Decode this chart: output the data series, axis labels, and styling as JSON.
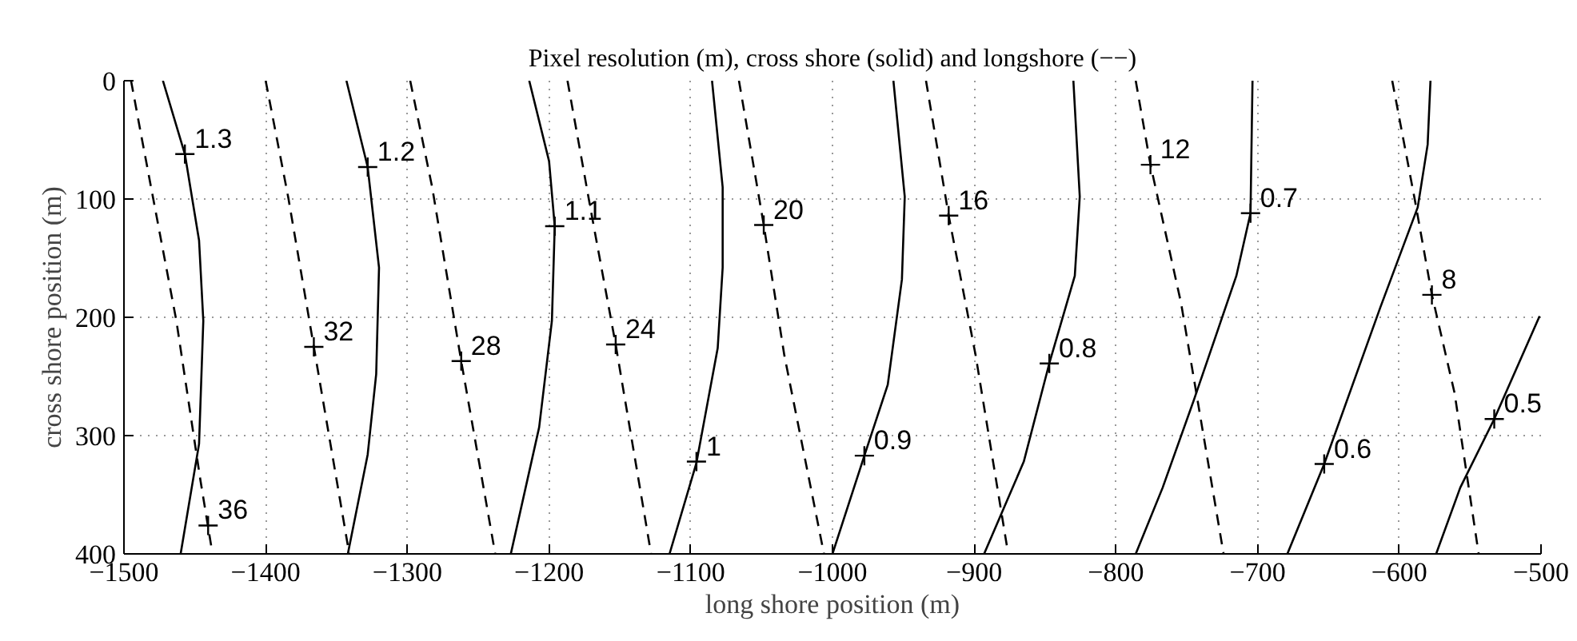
{
  "chart_data": {
    "type": "line",
    "title": "Pixel resolution (m), cross shore (solid) and longshore (−−)",
    "xlabel": "long shore position (m)",
    "ylabel": "cross shore position (m)",
    "xlim": [
      -1500,
      -500
    ],
    "ylim": [
      400,
      0
    ],
    "xticks": [
      -1500,
      -1400,
      -1300,
      -1200,
      -1100,
      -1000,
      -900,
      -800,
      -700,
      -600,
      -500
    ],
    "yticks": [
      0,
      100,
      200,
      300,
      400
    ],
    "grid": true,
    "marker": "none",
    "series": [
      {
        "color": "#000000",
        "line_style": "solid",
        "x": [
          -1472.5,
          -1457,
          -1447,
          -1444,
          -1447,
          -1460
        ],
        "values": [
          0,
          62,
          135,
          203,
          307,
          400
        ]
      },
      {
        "color": "#000000",
        "line_style": "solid",
        "x": [
          -1343,
          -1328,
          -1320,
          -1322,
          -1328,
          -1342
        ],
        "values": [
          0,
          73,
          158,
          248,
          316,
          400
        ]
      },
      {
        "color": "#000000",
        "line_style": "solid",
        "x": [
          -1214,
          -1200,
          -1196,
          -1198,
          -1207,
          -1227
        ],
        "values": [
          0,
          68,
          123,
          203,
          293,
          400
        ]
      },
      {
        "color": "#000000",
        "line_style": "solid",
        "x": [
          -1085,
          -1077.5,
          -1077.5,
          -1081,
          -1096,
          -1115
        ],
        "values": [
          0,
          90,
          158,
          226,
          323,
          400
        ]
      },
      {
        "color": "#000000",
        "line_style": "solid",
        "x": [
          -957,
          -949,
          -951,
          -961,
          -977.5,
          -1000
        ],
        "values": [
          0,
          98,
          168,
          257,
          317,
          400
        ]
      },
      {
        "color": "#000000",
        "line_style": "solid",
        "x": [
          -830,
          -825.5,
          -829,
          -847,
          -865,
          -893
        ],
        "values": [
          0,
          98,
          165,
          239,
          322,
          400
        ]
      },
      {
        "color": "#000000",
        "line_style": "solid",
        "x": [
          -703.6,
          -705,
          -715,
          -745,
          -767,
          -786
        ],
        "values": [
          0,
          112,
          165,
          270,
          344,
          400
        ]
      },
      {
        "color": "#000000",
        "line_style": "solid",
        "x": [
          -578,
          -580,
          -587,
          -613.5,
          -653,
          -679
        ],
        "values": [
          0,
          54,
          107,
          192,
          324,
          400
        ]
      },
      {
        "color": "#000000",
        "line_style": "solid",
        "x": [
          -501,
          -533,
          -557,
          -574
        ],
        "values": [
          199,
          286,
          344,
          400
        ]
      },
      {
        "color": "#000000",
        "line_style": "dashed",
        "x": [
          -1495,
          -1488,
          -1463,
          -1446,
          -1437.5
        ],
        "values": [
          0,
          45,
          203,
          338,
          400
        ]
      },
      {
        "color": "#000000",
        "line_style": "dashed",
        "x": [
          -1400,
          -1384,
          -1366,
          -1341
        ],
        "values": [
          0,
          99,
          225,
          400
        ]
      },
      {
        "color": "#000000",
        "line_style": "dashed",
        "x": [
          -1298,
          -1282.5,
          -1262,
          -1238
        ],
        "values": [
          0,
          90,
          237,
          400
        ]
      },
      {
        "color": "#000000",
        "line_style": "dashed",
        "x": [
          -1187,
          -1170,
          -1153,
          -1128
        ],
        "values": [
          0,
          113,
          223,
          400
        ]
      },
      {
        "color": "#000000",
        "line_style": "dashed",
        "x": [
          -1066,
          -1048.5,
          -1034,
          -1006
        ],
        "values": [
          0,
          122,
          232,
          400
        ]
      },
      {
        "color": "#000000",
        "line_style": "dashed",
        "x": [
          -934,
          -918,
          -899,
          -876
        ],
        "values": [
          0,
          114,
          232,
          400
        ]
      },
      {
        "color": "#000000",
        "line_style": "dashed",
        "x": [
          -786,
          -775.6,
          -754,
          -724
        ],
        "values": [
          0,
          71,
          188,
          400
        ]
      },
      {
        "color": "#000000",
        "line_style": "dashed",
        "x": [
          -605,
          -589,
          -577,
          -561,
          -544
        ],
        "values": [
          0,
          101,
          181,
          264,
          400
        ]
      }
    ],
    "annotations": [
      {
        "text": "1.3",
        "x": -1457,
        "y": 62
      },
      {
        "text": "1.2",
        "x": -1328,
        "y": 73
      },
      {
        "text": "1.1",
        "x": -1196,
        "y": 123
      },
      {
        "text": "1",
        "x": -1096,
        "y": 322
      },
      {
        "text": "0.9",
        "x": -977.5,
        "y": 317
      },
      {
        "text": "0.8",
        "x": -847,
        "y": 239
      },
      {
        "text": "0.7",
        "x": -705,
        "y": 112
      },
      {
        "text": "0.6",
        "x": -653,
        "y": 324
      },
      {
        "text": "0.5",
        "x": -533,
        "y": 286
      },
      {
        "text": "36",
        "x": -1440.6,
        "y": 376
      },
      {
        "text": "32",
        "x": -1366,
        "y": 225
      },
      {
        "text": "28",
        "x": -1262,
        "y": 237
      },
      {
        "text": "24",
        "x": -1153,
        "y": 223
      },
      {
        "text": "20",
        "x": -1048.5,
        "y": 122
      },
      {
        "text": "16",
        "x": -918,
        "y": 114
      },
      {
        "text": "12",
        "x": -775.6,
        "y": 71
      },
      {
        "text": "8",
        "x": -577,
        "y": 181
      }
    ]
  }
}
